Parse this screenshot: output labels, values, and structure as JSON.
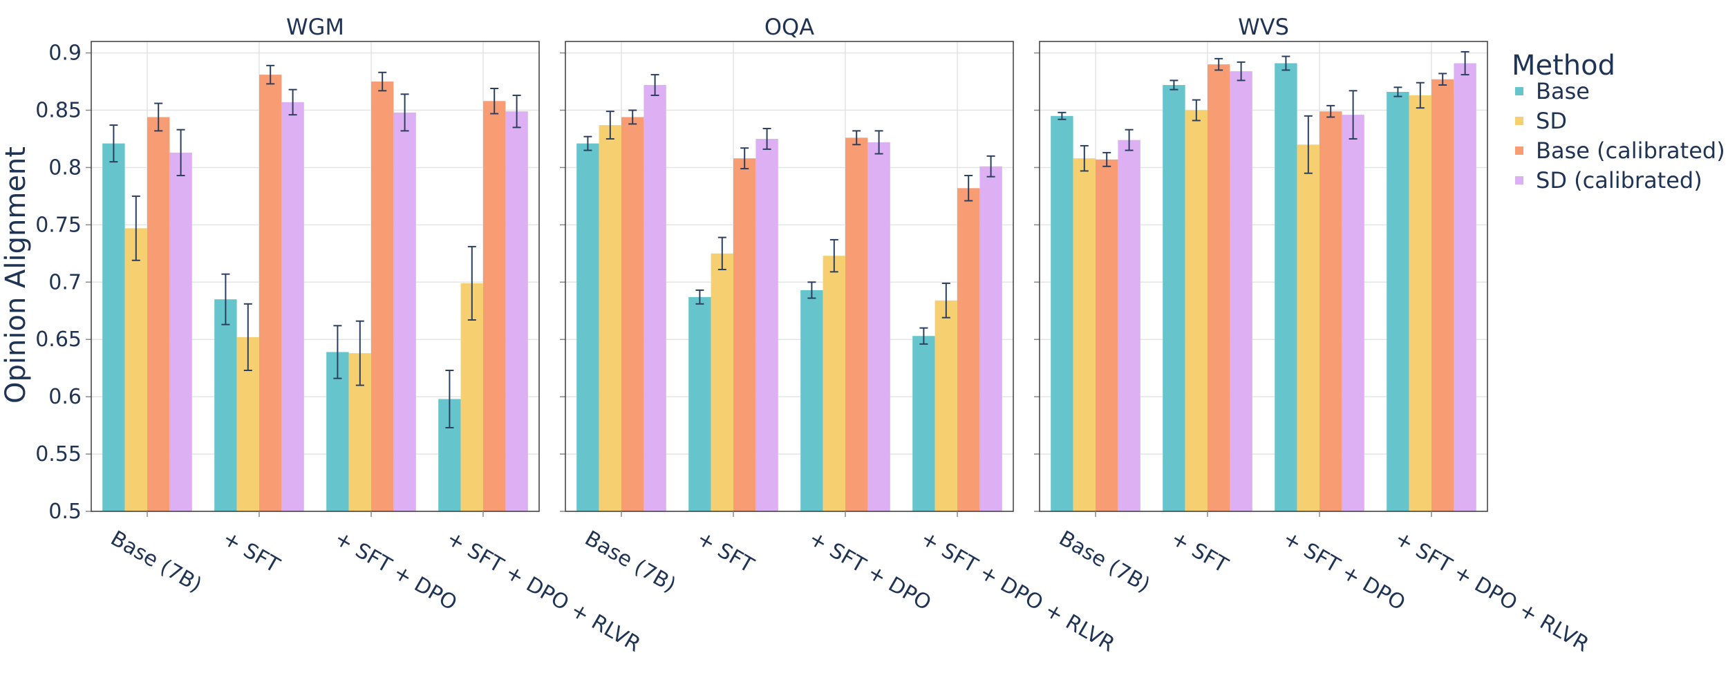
{
  "chart_data": {
    "type": "bar",
    "ylabel": "Opinion Alignment",
    "ylim": [
      0.5,
      0.91
    ],
    "yticks": [
      "0.5",
      "0.55",
      "0.6",
      "0.65",
      "0.7",
      "0.75",
      "0.8",
      "0.85",
      "0.9"
    ],
    "categories": [
      "Base (7B)",
      "+ SFT",
      "+ SFT + DPO",
      "+ SFT + DPO + RLVR"
    ],
    "legend": {
      "title": "Method",
      "position": "right",
      "entries": [
        {
          "name": "Base",
          "color": "#66c5cc"
        },
        {
          "name": "SD",
          "color": "#f6cf71"
        },
        {
          "name": "Base (calibrated)",
          "color": "#f89c74"
        },
        {
          "name": "SD (calibrated)",
          "color": "#dcb0f2"
        }
      ]
    },
    "panels": [
      {
        "title": "WGM",
        "series": [
          {
            "name": "Base",
            "values": [
              0.821,
              0.685,
              0.639,
              0.598
            ],
            "errors": [
              0.016,
              0.022,
              0.023,
              0.025
            ]
          },
          {
            "name": "SD",
            "values": [
              0.747,
              0.652,
              0.638,
              0.699
            ],
            "errors": [
              0.028,
              0.029,
              0.028,
              0.032
            ]
          },
          {
            "name": "Base (calibrated)",
            "values": [
              0.844,
              0.881,
              0.875,
              0.858
            ],
            "errors": [
              0.012,
              0.008,
              0.008,
              0.011
            ]
          },
          {
            "name": "SD (calibrated)",
            "values": [
              0.813,
              0.857,
              0.848,
              0.849
            ],
            "errors": [
              0.02,
              0.011,
              0.016,
              0.014
            ]
          }
        ]
      },
      {
        "title": "OQA",
        "series": [
          {
            "name": "Base",
            "values": [
              0.821,
              0.687,
              0.693,
              0.653
            ],
            "errors": [
              0.006,
              0.006,
              0.007,
              0.007
            ]
          },
          {
            "name": "SD",
            "values": [
              0.837,
              0.725,
              0.723,
              0.684
            ],
            "errors": [
              0.012,
              0.014,
              0.014,
              0.015
            ]
          },
          {
            "name": "Base (calibrated)",
            "values": [
              0.844,
              0.808,
              0.826,
              0.782
            ],
            "errors": [
              0.006,
              0.009,
              0.006,
              0.011
            ]
          },
          {
            "name": "SD (calibrated)",
            "values": [
              0.872,
              0.825,
              0.822,
              0.801
            ],
            "errors": [
              0.009,
              0.009,
              0.01,
              0.009
            ]
          }
        ]
      },
      {
        "title": "WVS",
        "series": [
          {
            "name": "Base",
            "values": [
              0.845,
              0.872,
              0.891,
              0.866
            ],
            "errors": [
              0.003,
              0.004,
              0.006,
              0.004
            ]
          },
          {
            "name": "SD",
            "values": [
              0.808,
              0.85,
              0.82,
              0.863
            ],
            "errors": [
              0.011,
              0.009,
              0.025,
              0.011
            ]
          },
          {
            "name": "Base (calibrated)",
            "values": [
              0.807,
              0.89,
              0.849,
              0.877
            ],
            "errors": [
              0.006,
              0.005,
              0.005,
              0.005
            ]
          },
          {
            "name": "SD (calibrated)",
            "values": [
              0.824,
              0.884,
              0.846,
              0.891
            ],
            "errors": [
              0.009,
              0.008,
              0.021,
              0.01
            ]
          }
        ]
      }
    ]
  }
}
